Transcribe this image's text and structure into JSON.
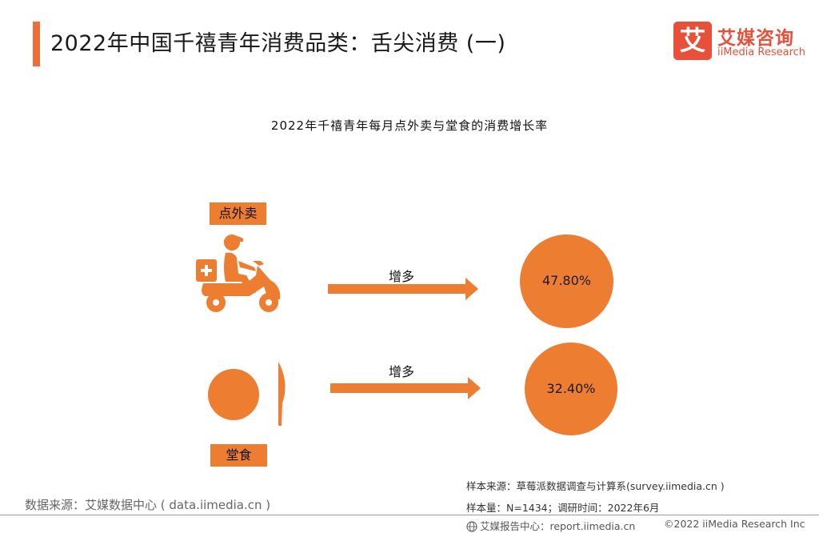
{
  "header": {
    "title": "2022年中国千禧青年消费品类：舌尖消费 (一)",
    "logo_mark": "艾",
    "logo_cn": "艾媒咨询",
    "logo_en": "iiMedia Research"
  },
  "colors": {
    "accent": "#ED7D31",
    "accent_bar": "#F26B3A",
    "logo_red": "#E8503A"
  },
  "chart_data": {
    "type": "infographic",
    "title": "2022年千禧青年每月点外卖与堂食的消费增长率",
    "categories": [
      "点外卖",
      "堂食"
    ],
    "trend": [
      "增多",
      "增多"
    ],
    "values": [
      47.8,
      32.4
    ],
    "value_labels": [
      "47.80%",
      "32.40%"
    ],
    "unit": "%",
    "icons": [
      "delivery-scooter-icon",
      "plate-knife-icon"
    ]
  },
  "footer": {
    "data_source": "数据来源：艾媒数据中心 ( data.iimedia.cn )",
    "sample_source": "样本来源：草莓派数据调查与计算系(survey.iimedia.cn )",
    "sample_size": "样本量：N=1434；调研时间：2022年6月",
    "report_center": "艾媒报告中心：report.iimedia.cn",
    "copyright": "©2022 iiMedia Research Inc"
  }
}
